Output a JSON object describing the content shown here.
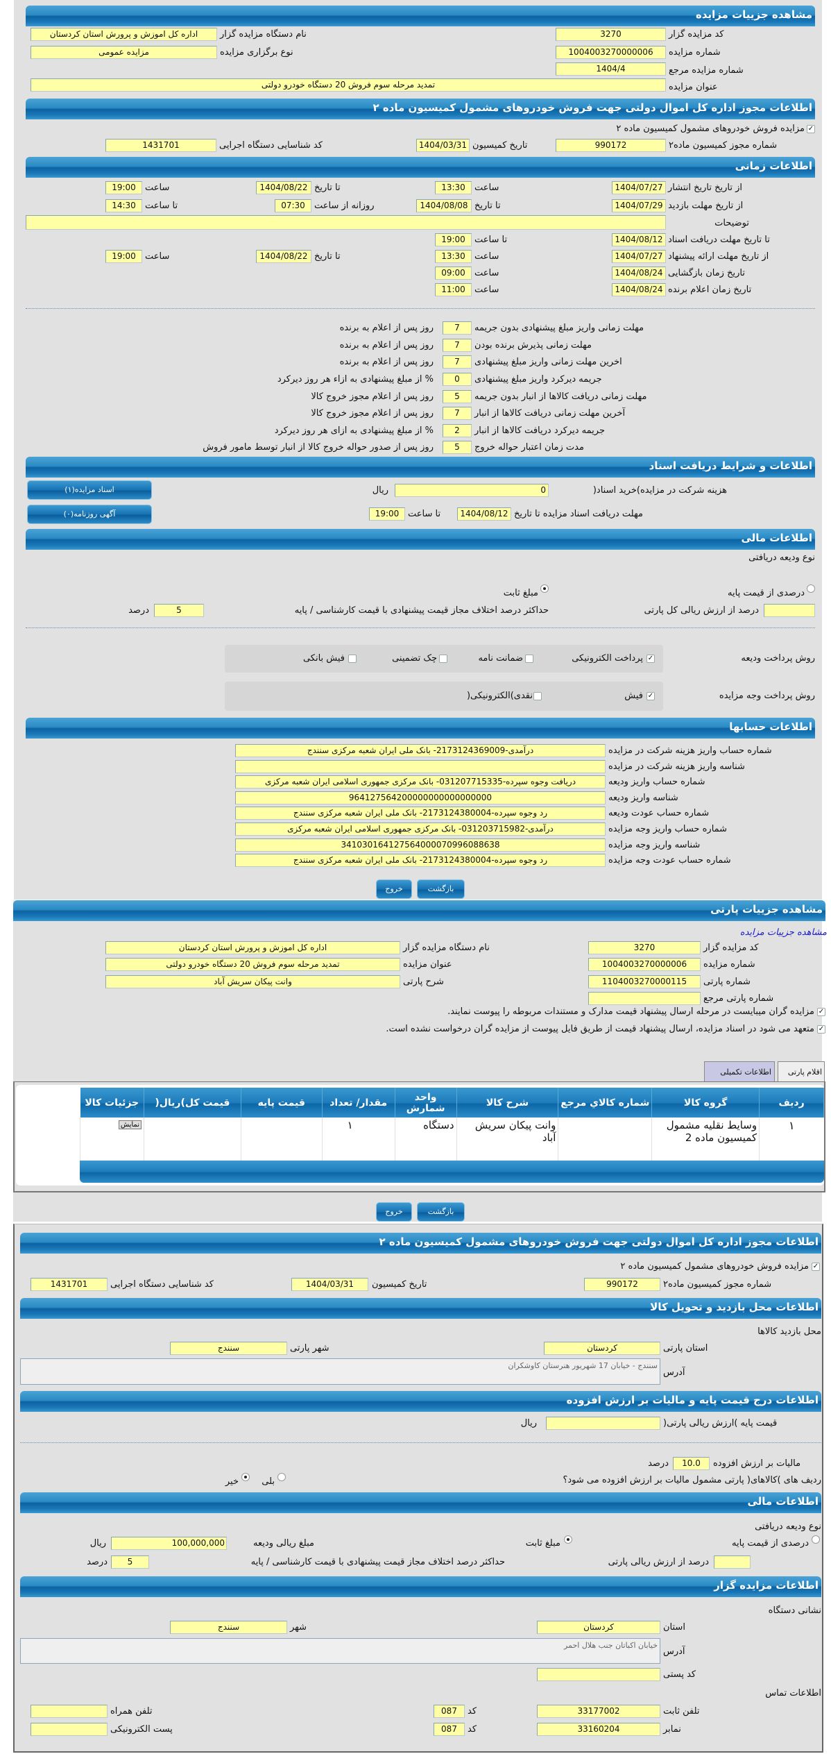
{
  "auction": {
    "title": "مشاهده جزییات مزایده",
    "code_label": "کد مزایده گزار",
    "code": "3270",
    "org_label": "نام دستگاه مزایده گزار",
    "org": "اداره کل اموزش و پرورش استان کردستان",
    "number_label": "شماره مزایده",
    "number": "1004003270000006",
    "type_label": "نوع برگزاری مزایده",
    "type": "مزایده عمومی",
    "ref_label": "شماره مزایده مرجع",
    "ref": "1404/4",
    "subject_label": "عنوان مزایده",
    "subject": "تمدید مرحله سوم فروش 20 دستگاه خودرو دولتی"
  },
  "permit": {
    "title": "اطلاعات مجوز اداره کل اموال دولتی جهت فروش خودروهای مشمول کمیسیون ماده ۲",
    "checkbox_label": "مزایده فروش خودروهای مشمول کمیسیون ماده ۲",
    "checked": true,
    "permit_no_label": "شماره مجوز کمیسیون ماده۲",
    "permit_no": "990172",
    "date_label": "تاریخ کمیسیون",
    "date": "1404/03/31",
    "id_label": "کد شناسایی دستگاه اجرایی",
    "id": "1431701"
  },
  "time": {
    "title": "اطلاعات زمانی",
    "hour": "ساعت",
    "to_hour": "تا ساعت",
    "to_date": "تا تاریخ",
    "from_date": "از تاریخ",
    "date": "تاریخ",
    "daily_from": "روزانه از ساعت",
    "publish": {
      "label": "تاریخ انتشار",
      "from": "1404/07/27",
      "from_time": "13:30",
      "to": "1404/08/22",
      "to_time": "19:00"
    },
    "visit": {
      "label": "مهلت بازدید",
      "from": "1404/07/29",
      "to": "1404/08/08",
      "daily_from": "07:30",
      "daily_to": "14:30"
    },
    "desc_label": "توضیحات",
    "desc": "",
    "docs": {
      "label": "مهلت دریافت اسناد",
      "to": "1404/08/12",
      "to_time": "19:00"
    },
    "offer": {
      "label": "مهلت ارائه پیشنهاد",
      "from": "1404/07/27",
      "from_time": "13:30",
      "to": "1404/08/22",
      "to_time": "19:00"
    },
    "opening": {
      "label": "زمان بازگشایی",
      "date": "1404/08/24",
      "time": "09:00"
    },
    "winner": {
      "label": "زمان اعلام برنده",
      "date": "1404/08/24",
      "time": "11:00"
    },
    "deadlines": [
      {
        "label": "مهلت زمانی واریز مبلغ پیشنهادی بدون جریمه",
        "value": "7",
        "suffix": "روز پس از اعلام به برنده"
      },
      {
        "label": "مهلت زمانی پذیرش برنده بودن",
        "value": "7",
        "suffix": "روز پس از اعلام به برنده"
      },
      {
        "label": "اخرین مهلت زمانی واریز مبلغ پیشنهادی",
        "value": "7",
        "suffix": "روز پس از اعلام به برنده"
      },
      {
        "label": "جریمه دیرکرد واریز مبلغ پیشنهادی",
        "value": "0",
        "suffix": "% از مبلغ پیشنهادی به ازاء هر روز دیرکرد"
      },
      {
        "label": "مهلت زمانی دریافت کالاها از انبار بدون جریمه",
        "value": "5",
        "suffix": "روز پس از اعلام مجوز خروج کالا"
      },
      {
        "label": "آخرین مهلت زمانی دریافت کالاها از انبار",
        "value": "7",
        "suffix": "روز پس از اعلام مجوز خروج کالا"
      },
      {
        "label": "جریمه دیرکرد دریافت کالاها از انبار",
        "value": "2",
        "suffix": "% از مبلغ پیشنهادی به ازای هر روز دیرکرد"
      },
      {
        "label": "مدت زمان اعتبار حواله خروج",
        "value": "5",
        "suffix": "روز پس از صدور حواله خروج کالا از انبار توسط مامور فروش"
      }
    ]
  },
  "docs": {
    "title": "اطلاعات و شرایط دریافت اسناد",
    "fee_label": "هزینه شرکت در مزایده)خرید اسناد(",
    "fee": "0",
    "rial": "ریال",
    "deadline_label": "مهلت دریافت اسناد مزایده تا تاریخ",
    "deadline": "1404/08/12",
    "to_hour": "تا ساعت",
    "deadline_time": "19:00",
    "docs_button": "اسناد مزایده(۱)",
    "ads_button": "آگهی روزنامه(۰)"
  },
  "finance": {
    "title": "اطلاعات مالی",
    "deposit_type": "نوع ودیعه دریافتی",
    "percent_option": "درصدی از قیمت پایه",
    "fixed_option": "مبلغ ثابت",
    "selected": "fixed",
    "percent_label": "درصد از ارزش ریالی کل پارتی",
    "percent": "",
    "max_diff_label": "حداکثر درصد اختلاف مجاز قیمت پیشنهادی با قیمت کارشناسی / پایه",
    "max_diff": "5",
    "percent_unit": "درصد",
    "deposit_pay_label": "روش پرداخت ودیعه",
    "deposit_methods": [
      {
        "label": "پرداخت الکترونیکی",
        "checked": true
      },
      {
        "label": "ضمانت نامه",
        "checked": false
      },
      {
        "label": "چک تضمینی",
        "checked": false
      },
      {
        "label": "فیش بانکی",
        "checked": false
      }
    ],
    "auction_pay_label": "روش پرداخت وجه مزایده",
    "auction_methods": [
      {
        "label": "فیش",
        "checked": true
      },
      {
        "label": "نقدی)الکترونیکی(",
        "checked": false
      }
    ]
  },
  "accounts": {
    "title": "اطلاعات حسابها",
    "rows": [
      {
        "label": "شماره حساب واریز هزینه شرکت در مزایده",
        "value": "درآمدی-2173124369009- بانک ملی ایران شعبه مرکزی سنندج"
      },
      {
        "label": "شناسه واریز هزینه شرکت در مزایده",
        "value": ""
      },
      {
        "label": "شماره حساب واریز ودیعه",
        "value": "دریافت وجوه سپرده-031207715335- بانک مرکزی جمهوری اسلامی ایران شعبه مرکزی"
      },
      {
        "label": "شناسه واریز ودیعه",
        "value": "964127564200000000000000000"
      },
      {
        "label": "شماره حساب عودت ودیعه",
        "value": "رد وجوه سپرده-2173124380004- بانک ملی ایران شعبه مرکزی سنندج"
      },
      {
        "label": "شماره حساب واریز وجه مزایده",
        "value": "درآمدی-031203715982- بانک مرکزی جمهوری اسلامی ایران شعبه مرکزی"
      },
      {
        "label": "شناسه واریز وجه مزایده",
        "value": "341030164127564000070996088638"
      },
      {
        "label": "شماره حساب عودت وجه مزایده",
        "value": "رد وجوه سپرده-2173124380004- بانک ملی ایران شعبه مرکزی سنندج"
      }
    ]
  },
  "buttons": {
    "back": "بازگشت",
    "exit": "خروج"
  },
  "lot": {
    "title": "مشاهده جزییات پارتی",
    "link": "مشاهده جزییات مزایده",
    "code_label": "کد مزایده گزار",
    "code": "3270",
    "org_label": "نام دستگاه مزایده گزار",
    "org": "اداره کل اموزش و پرورش استان کردستان",
    "number_label": "شماره مزایده",
    "number": "1004003270000006",
    "subject_label": "عنوان مزایده",
    "subject": "تمدید مرحله سوم فروش 20 دستگاه خودرو دولتی",
    "lot_no_label": "شماره پارتی",
    "lot_no": "1104003270000115",
    "lot_desc_label": "شرح پارتی",
    "lot_desc": "وانت پیکان سریش آباد",
    "lot_ref_label": "شماره پارتی مرجع",
    "lot_ref": "",
    "check1": "مزایده گران میبایست در مرحله ارسال پیشنهاد قیمت مدارک و مستندات مربوطه را پیوست نمایند.",
    "check2": "متعهد می شود در اسناد مزایده، ارسال پیشنهاد قیمت از طریق فایل پیوست از مزایده گران درخواست نشده است.",
    "tabs": [
      {
        "label": "اقلام پارتی",
        "active": true
      },
      {
        "label": "اطلاعات تکمیلی",
        "active": false
      }
    ],
    "columns": [
      "ردیف",
      "گروه کالا",
      "شماره کالاي مرجع",
      "شرح کالا",
      "واحد شمارش",
      "مقدار/ تعداد",
      "قیمت پایه",
      "قیمت کل)ریال(",
      "جزئیات کالا"
    ],
    "rows": [
      {
        "row": "۱",
        "group": "وسایط نقلیه مشمول کمیسیون ماده 2",
        "ref": "",
        "desc": "وانت پیکان سریش آباد",
        "unit": "دستگاه",
        "qty": "۱",
        "base": "",
        "total": "",
        "details": "نمایش"
      }
    ]
  },
  "lot_permit": {
    "title": "اطلاعات مجوز اداره کل اموال دولتی جهت فروش خودروهای مشمول کمیسیون ماده ۲",
    "checkbox_label": "مزایده فروش خودروهای مشمول کمیسیون ماده ۲",
    "permit_no_label": "شماره مجوز کمیسیون ماده۲",
    "permit_no": "990172",
    "date_label": "تاریخ کمیسیون",
    "date": "1404/03/31",
    "id_label": "کد شناسایی دستگاه اجرایی",
    "id": "1431701"
  },
  "location": {
    "title": "اطلاعات محل بازدید و تحویل کالا",
    "subtitle": "محل بازدید کالاها",
    "province_label": "استان پارتی",
    "province": "کردستان",
    "city_label": "شهر پارتی",
    "city": "سنندج",
    "address_label": "آدرس",
    "address": "سنندج - خیابان 17 شهریور هنرستان کاوشکران"
  },
  "pricing": {
    "title": "اطلاعات درج قیمت پایه و مالیات بر ارزش افزوده",
    "base_label": "قیمت پایه )ارزش ریالی پارتی(",
    "base": "",
    "rial": "ریال",
    "vat_label": "مالیات بر ارزش افزوده",
    "vat": "10.0",
    "percent": "درصد",
    "vat_q": "ردیف های )کالاهای( پارتی مشمول مالیات بر ارزش افزوده می شود؟",
    "yes": "بلی",
    "no": "خیر",
    "selected": "no"
  },
  "lot_finance": {
    "title": "اطلاعات مالی",
    "deposit_type": "نوع ودیعه دریافتی",
    "percent_option": "درصدی از قیمت پایه",
    "fixed_option": "مبلغ ثابت",
    "selected": "fixed",
    "amount_label": "مبلغ ریالی ودیعه",
    "amount": "100,000,000",
    "rial": "ریال",
    "percent_label": "درصد از ارزش ریالی پارتی",
    "percent": "",
    "max_diff_label": "حداکثر درصد اختلاف مجاز قیمت پیشنهادی با قیمت کارشناسی / پایه",
    "max_diff": "5",
    "percent_unit": "درصد"
  },
  "auctioneer": {
    "title": "اطلاعات مزایده گزار",
    "address_title": "نشانی دستگاه",
    "province_label": "استان",
    "province": "کردستان",
    "city_label": "شهر",
    "city": "سنندج",
    "address_label": "آدرس",
    "address": "خیابان اکباتان جنب هلال احمر",
    "postal_label": "کد پستی",
    "postal": "",
    "contact_title": "اطلاعات تماس",
    "phone_label": "تلفن ثابت",
    "phone": "33177002",
    "code_label": "کد",
    "phone_code": "087",
    "mobile_label": "تلفن همراه",
    "mobile": "",
    "fax_label": "نمابر",
    "fax": "33160204",
    "fax_code": "087",
    "email_label": "پست الکترونیکی",
    "email": ""
  },
  "colors": {
    "header": "#1f7fbf",
    "field": "#ffffa6",
    "panel": "#e1e1e1",
    "link": "#1a1ad0"
  }
}
